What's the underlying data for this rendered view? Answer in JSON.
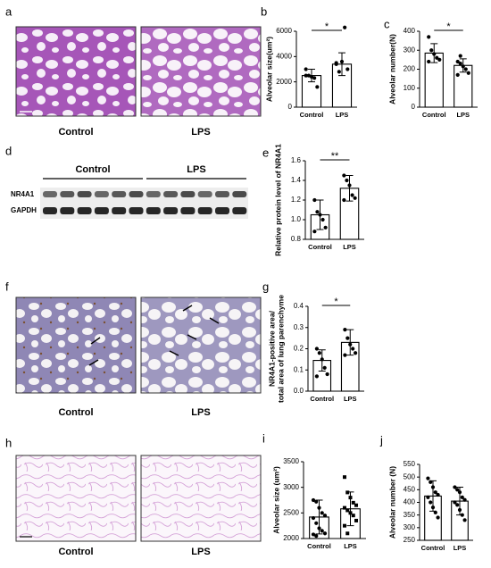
{
  "images": [
    {
      "label": "a",
      "captions": [
        "Control",
        "LPS"
      ]
    },
    {
      "label": "f",
      "captions": [
        "Control",
        "LPS"
      ]
    },
    {
      "label": "h",
      "captions": [
        "Control",
        "LPS"
      ]
    }
  ],
  "blot": {
    "label": "d",
    "groups": [
      "Control",
      "LPS"
    ],
    "rows": [
      "NR4A1",
      "GAPDH"
    ]
  },
  "chart_data": [
    {
      "type": "bar",
      "label": "b",
      "ylabel": "Alveolar size(um²)",
      "categories": [
        "Control",
        "LPS"
      ],
      "values": [
        2500,
        3400
      ],
      "errors": [
        500,
        900
      ],
      "points": [
        [
          3000,
          2500,
          2400,
          2300,
          1600,
          2500
        ],
        [
          3400,
          2800,
          3600,
          6300,
          3000,
          3500
        ]
      ],
      "ylim": [
        0,
        6000
      ],
      "yticks": [
        0,
        2000,
        4000,
        6000
      ],
      "significance": "*"
    },
    {
      "type": "bar",
      "label": "c",
      "ylabel": "Alveolar number(N)",
      "categories": [
        "Control",
        "LPS"
      ],
      "values": [
        285,
        220
      ],
      "errors": [
        50,
        35
      ],
      "points": [
        [
          370,
          300,
          280,
          260,
          250,
          240
        ],
        [
          240,
          230,
          215,
          200,
          180,
          170,
          270
        ]
      ],
      "ylim": [
        0,
        400
      ],
      "yticks": [
        0,
        100,
        200,
        300,
        400
      ],
      "significance": "*"
    },
    {
      "type": "bar",
      "label": "e",
      "ylabel": "Relative protein level of NR4A1",
      "categories": [
        "Control",
        "LPS"
      ],
      "values": [
        1.05,
        1.32
      ],
      "errors": [
        0.15,
        0.13
      ],
      "points": [
        [
          1.2,
          1.08,
          1.05,
          1.0,
          0.92,
          0.88
        ],
        [
          1.45,
          1.4,
          1.35,
          1.25,
          1.22,
          1.2
        ]
      ],
      "ylim": [
        0.8,
        1.6
      ],
      "yticks": [
        0.8,
        {
          "value": 1,
          "label": "1.0"
        },
        1.2,
        1.4,
        1.6
      ],
      "significance": "**"
    },
    {
      "type": "bar",
      "label": "g",
      "ylabel": [
        "NR4A1-positive area/",
        "total area of lung parenchyme"
      ],
      "categories": [
        "Control",
        "LPS"
      ],
      "values": [
        0.145,
        0.23
      ],
      "errors": [
        0.05,
        0.06
      ],
      "points": [
        [
          0.2,
          0.18,
          0.15,
          0.11,
          0.08,
          0.07
        ],
        [
          0.29,
          0.25,
          0.22,
          0.2,
          0.18,
          0.17
        ]
      ],
      "ylim": [
        0,
        0.4
      ],
      "yticks": [
        {
          "value": 0,
          "label": "0.0"
        },
        0.1,
        0.2,
        0.3,
        0.4
      ],
      "significance": "*"
    },
    {
      "type": "bar",
      "label": "i",
      "ylabel": "Alveolar size (um²)",
      "categories": [
        "Control",
        "LPS"
      ],
      "values": [
        2420,
        2580
      ],
      "errors": [
        330,
        330
      ],
      "markers": [
        "circle",
        "square"
      ],
      "points": [
        [
          2750,
          2720,
          2600,
          2500,
          2450,
          2400,
          2300,
          2200,
          2150,
          2100,
          2080,
          2050
        ],
        [
          3200,
          2900,
          2800,
          2700,
          2650,
          2600,
          2550,
          2500,
          2450,
          2350,
          2250,
          2100
        ]
      ],
      "ylim": [
        2000,
        3500
      ],
      "yticks": [
        2000,
        2500,
        3000,
        3500
      ]
    },
    {
      "type": "bar",
      "label": "j",
      "ylabel": "Alveolar number (N)",
      "categories": [
        "Control",
        "LPS"
      ],
      "values": [
        425,
        405
      ],
      "errors": [
        60,
        55
      ],
      "points": [
        [
          495,
          480,
          460,
          440,
          430,
          420,
          400,
          380,
          360,
          340
        ],
        [
          460,
          450,
          440,
          420,
          410,
          400,
          390,
          370,
          350,
          330
        ]
      ],
      "ylim": [
        250,
        550
      ],
      "yticks": [
        250,
        300,
        350,
        400,
        450,
        500,
        550
      ]
    }
  ]
}
